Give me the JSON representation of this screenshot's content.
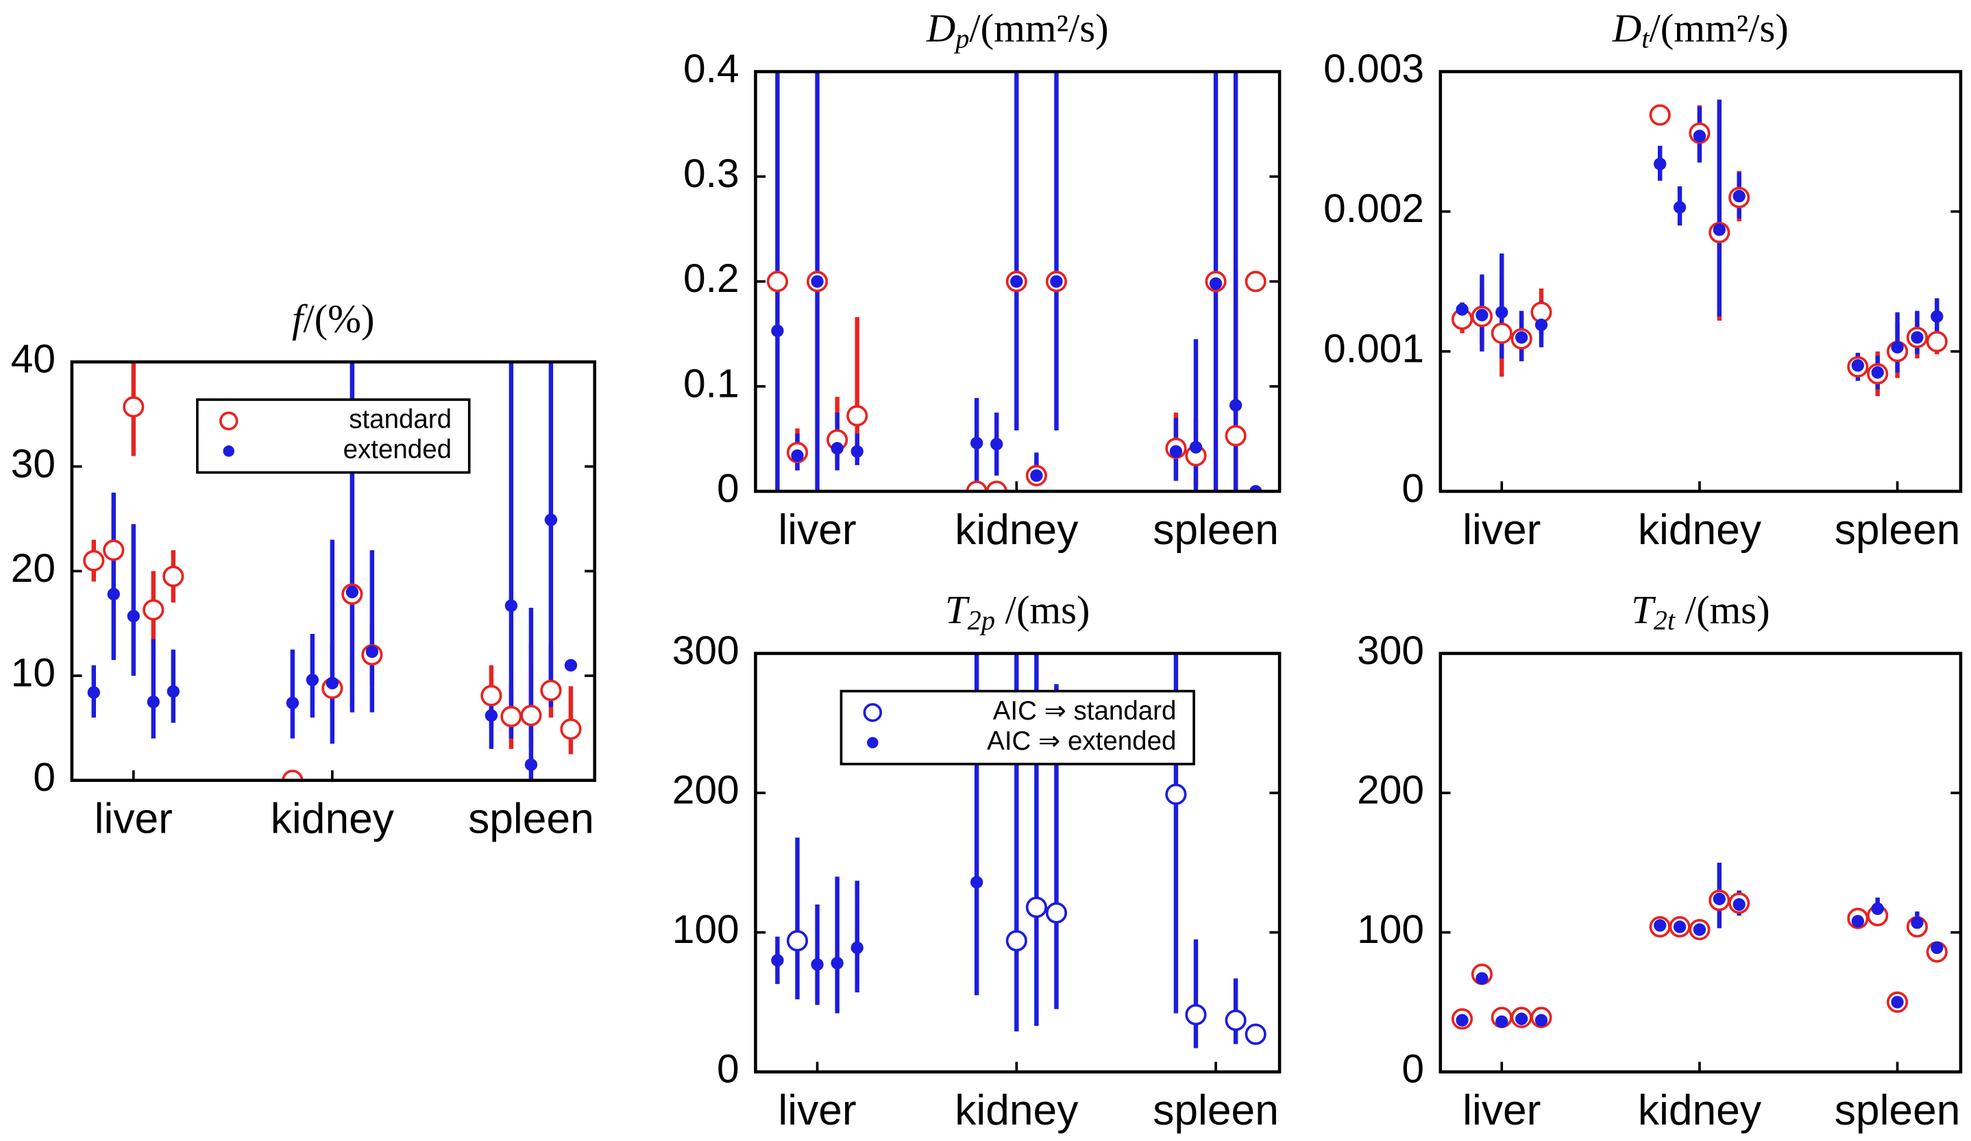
{
  "chart_data": [
    {
      "type": "scatter",
      "title": {
        "symbol": "f",
        "unit": "/(%)"
      },
      "xlim": [
        0.69,
        3.32
      ],
      "xticks": [
        {
          "value": 1,
          "label": "liver"
        },
        {
          "value": 2,
          "label": "kidney"
        },
        {
          "value": 3,
          "label": "spleen"
        }
      ],
      "ylim": [
        0,
        40
      ],
      "yticks": [
        0,
        10,
        20,
        30,
        40
      ],
      "legend": "upper center",
      "series": [
        {
          "name": "standard",
          "marker": "open",
          "color": "#e8231f",
          "x": [
            0.8,
            0.9,
            1.0,
            1.1,
            1.2,
            1.8,
            2.0,
            2.1,
            2.2,
            2.8,
            2.9,
            3.0,
            3.1,
            3.2
          ],
          "values": [
            21,
            22,
            35.7,
            16.3,
            19.5,
            0,
            8.8,
            17.8,
            12,
            8.1,
            6.1,
            6.2,
            8.6,
            4.9
          ],
          "lower": [
            19,
            18,
            31,
            13,
            17,
            null,
            6.5,
            7,
            9,
            5,
            3,
            3,
            6,
            2.5
          ],
          "upper": [
            23,
            26,
            40,
            20,
            22,
            null,
            13,
            40,
            15,
            11,
            9,
            13,
            13,
            9
          ]
        },
        {
          "name": "extended",
          "marker": "filled",
          "color": "#1c1ce0",
          "x": [
            0.8,
            0.9,
            1.0,
            1.1,
            1.2,
            1.8,
            1.9,
            2.0,
            2.1,
            2.2,
            2.8,
            2.9,
            3.0,
            3.1,
            3.2
          ],
          "values": [
            8.4,
            17.8,
            15.7,
            7.5,
            8.5,
            7.4,
            9.6,
            9.3,
            18,
            12.3,
            6.2,
            16.7,
            1.5,
            24.9,
            11
          ],
          "lower": [
            6,
            11.5,
            10,
            4,
            5.5,
            4,
            6,
            3.5,
            6.5,
            6.5,
            3,
            4,
            0,
            7,
            null
          ],
          "upper": [
            11,
            27.5,
            24.5,
            13.5,
            12.5,
            12.5,
            14,
            23,
            40,
            22,
            9,
            40,
            16.5,
            40,
            null
          ]
        }
      ]
    },
    {
      "type": "scatter",
      "title": {
        "symbol": "D",
        "subscript": "p",
        "unit": "/(mm²/s)"
      },
      "xlim": [
        0.69,
        3.32
      ],
      "xticks": [
        {
          "value": 1,
          "label": "liver"
        },
        {
          "value": 2,
          "label": "kidney"
        },
        {
          "value": 3,
          "label": "spleen"
        }
      ],
      "ylim": [
        0,
        0.4
      ],
      "yticks": [
        0,
        0.1,
        0.2,
        0.3,
        0.4
      ],
      "series": [
        {
          "marker": "open",
          "color": "#e8231f",
          "x": [
            0.8,
            0.9,
            1.0,
            1.1,
            1.2,
            1.8,
            1.9,
            2.0,
            2.1,
            2.2,
            2.8,
            2.9,
            3.0,
            3.1,
            3.2
          ],
          "values": [
            0.2,
            0.037,
            0.2,
            0.049,
            0.072,
            0,
            0,
            0.2,
            0.015,
            0.2,
            0.041,
            0.034,
            0.2,
            0.053,
            0.2
          ],
          "lower": [
            null,
            0.02,
            null,
            0.03,
            0.03,
            null,
            null,
            null,
            0.005,
            null,
            0.01,
            0.005,
            null,
            0,
            null
          ],
          "upper": [
            null,
            0.06,
            null,
            0.09,
            0.166,
            null,
            null,
            null,
            0.03,
            null,
            0.075,
            0.07,
            null,
            0.21,
            null
          ]
        },
        {
          "marker": "filled",
          "color": "#1c1ce0",
          "x": [
            0.8,
            0.9,
            1.0,
            1.1,
            1.2,
            1.8,
            1.9,
            2.0,
            2.1,
            2.2,
            2.8,
            2.9,
            3.0,
            3.1,
            3.2
          ],
          "values": [
            0.153,
            0.034,
            0.2,
            0.041,
            0.038,
            0.046,
            0.045,
            0.2,
            0.015,
            0.2,
            0.038,
            0.042,
            0.198,
            0.082,
            0
          ],
          "lower": [
            0,
            0.02,
            0,
            0.02,
            0.025,
            0.005,
            0.015,
            0.058,
            0.01,
            0.058,
            0.01,
            0,
            0,
            0,
            null
          ],
          "upper": [
            0.4,
            0.055,
            0.4,
            0.075,
            0.055,
            0.089,
            0.075,
            0.4,
            0.037,
            0.4,
            0.07,
            0.145,
            0.4,
            0.4,
            null
          ]
        }
      ]
    },
    {
      "type": "scatter",
      "title": {
        "symbol": "D",
        "subscript": "t",
        "unit": "/(mm²/s)"
      },
      "xlim": [
        0.69,
        3.32
      ],
      "xticks": [
        {
          "value": 1,
          "label": "liver"
        },
        {
          "value": 2,
          "label": "kidney"
        },
        {
          "value": 3,
          "label": "spleen"
        }
      ],
      "ylim": [
        0,
        0.003
      ],
      "yticks": [
        0,
        0.001,
        0.002,
        0.003
      ],
      "series": [
        {
          "marker": "open",
          "color": "#e8231f",
          "x": [
            0.8,
            0.9,
            1.0,
            1.1,
            1.2,
            1.8,
            2.0,
            2.1,
            2.2,
            2.8,
            2.9,
            3.0,
            3.1,
            3.2
          ],
          "values": [
            0.00123,
            0.00125,
            0.00113,
            0.00109,
            0.00128,
            0.00269,
            0.00256,
            0.00185,
            0.0021,
            0.00089,
            0.00084,
            0.001,
            0.0011,
            0.00107
          ],
          "lower": [
            0.00113,
            0.00105,
            0.00082,
            0.00093,
            0.00111,
            null,
            0.00236,
            0.00122,
            0.00193,
            0.00081,
            0.00068,
            0.00081,
            0.00095,
            0.00098
          ],
          "upper": [
            0.00133,
            0.00145,
            0.00153,
            0.00125,
            0.00145,
            null,
            0.00276,
            0.00266,
            0.00229,
            0.00098,
            0.001,
            0.00121,
            0.00128,
            0.00117
          ]
        },
        {
          "marker": "filled",
          "color": "#1c1ce0",
          "x": [
            0.8,
            0.9,
            1.0,
            1.1,
            1.2,
            1.8,
            1.9,
            2.0,
            2.1,
            2.2,
            2.8,
            2.9,
            3.0,
            3.1,
            3.2
          ],
          "values": [
            0.0013,
            0.00126,
            0.00128,
            0.0011,
            0.00119,
            0.00234,
            0.00203,
            0.00254,
            0.00187,
            0.00211,
            0.0009,
            0.00085,
            0.00103,
            0.0011,
            0.00125
          ],
          "lower": [
            0.00125,
            0.001,
            0.00095,
            0.00093,
            0.00103,
            0.00222,
            0.0019,
            0.00235,
            0.00125,
            0.00195,
            0.00079,
            0.00073,
            0.00085,
            0.00098,
            0.00112
          ],
          "upper": [
            0.00135,
            0.00155,
            0.0017,
            0.00129,
            0.00136,
            0.00247,
            0.00218,
            0.00275,
            0.0028,
            0.00228,
            0.00099,
            0.00097,
            0.00128,
            0.00129,
            0.00138
          ]
        }
      ]
    },
    {
      "type": "scatter",
      "title": {
        "symbol": "T",
        "subscript": "2p",
        "unit": " /(ms)"
      },
      "xlim": [
        0.69,
        3.32
      ],
      "xticks": [
        {
          "value": 1,
          "label": "liver"
        },
        {
          "value": 2,
          "label": "kidney"
        },
        {
          "value": 3,
          "label": "spleen"
        }
      ],
      "ylim": [
        0,
        300
      ],
      "yticks": [
        0,
        100,
        200,
        300
      ],
      "legend": "upper center",
      "series": [
        {
          "name": "AIC ⇒  standard",
          "marker": "open",
          "color": "#1c1ce0",
          "x": [
            0.9,
            2.0,
            2.1,
            2.2,
            2.8,
            2.9,
            3.1,
            3.2
          ],
          "values": [
            94,
            94,
            118,
            114,
            199,
            41,
            37,
            27
          ],
          "lower": [
            52,
            29,
            33,
            45,
            42,
            17,
            20,
            null
          ],
          "upper": [
            168,
            300,
            300,
            278,
            300,
            95,
            67,
            null
          ]
        },
        {
          "name": "AIC ⇒  extended",
          "marker": "filled",
          "color": "#1c1ce0",
          "x": [
            0.8,
            1.0,
            1.1,
            1.2,
            1.8
          ],
          "values": [
            80,
            77,
            78,
            89,
            136
          ],
          "lower": [
            63,
            48,
            42,
            57,
            55
          ],
          "upper": [
            97,
            120,
            140,
            137,
            300
          ]
        }
      ]
    },
    {
      "type": "scatter",
      "title": {
        "symbol": "T",
        "subscript": "2t",
        "unit": " /(ms)"
      },
      "xlim": [
        0.69,
        3.32
      ],
      "xticks": [
        {
          "value": 1,
          "label": "liver"
        },
        {
          "value": 2,
          "label": "kidney"
        },
        {
          "value": 3,
          "label": "spleen"
        }
      ],
      "ylim": [
        0,
        300
      ],
      "yticks": [
        0,
        100,
        200,
        300
      ],
      "series": [
        {
          "marker": "open",
          "color": "#e8231f",
          "x": [
            0.8,
            0.9,
            1.0,
            1.1,
            1.2,
            1.8,
            1.9,
            2.0,
            2.1,
            2.2,
            2.8,
            2.9,
            3.0,
            3.1,
            3.2
          ],
          "values": [
            38,
            70,
            39,
            39,
            39,
            104,
            104,
            102,
            123,
            121,
            110,
            112,
            50,
            104,
            86
          ]
        },
        {
          "marker": "filled",
          "color": "#1c1ce0",
          "x": [
            0.8,
            0.9,
            1.0,
            1.1,
            1.2,
            1.8,
            1.9,
            2.0,
            2.1,
            2.2,
            2.8,
            2.9,
            3.0,
            3.1,
            3.2
          ],
          "values": [
            37,
            67,
            36,
            38,
            37,
            105,
            104,
            102,
            124,
            120,
            108,
            117,
            50,
            107,
            89
          ],
          "lower": [
            null,
            null,
            null,
            null,
            null,
            null,
            null,
            null,
            103,
            112,
            105,
            110,
            null,
            100,
            null
          ],
          "upper": [
            null,
            null,
            null,
            null,
            null,
            null,
            null,
            null,
            150,
            130,
            113,
            125,
            null,
            115,
            null
          ]
        }
      ]
    }
  ]
}
